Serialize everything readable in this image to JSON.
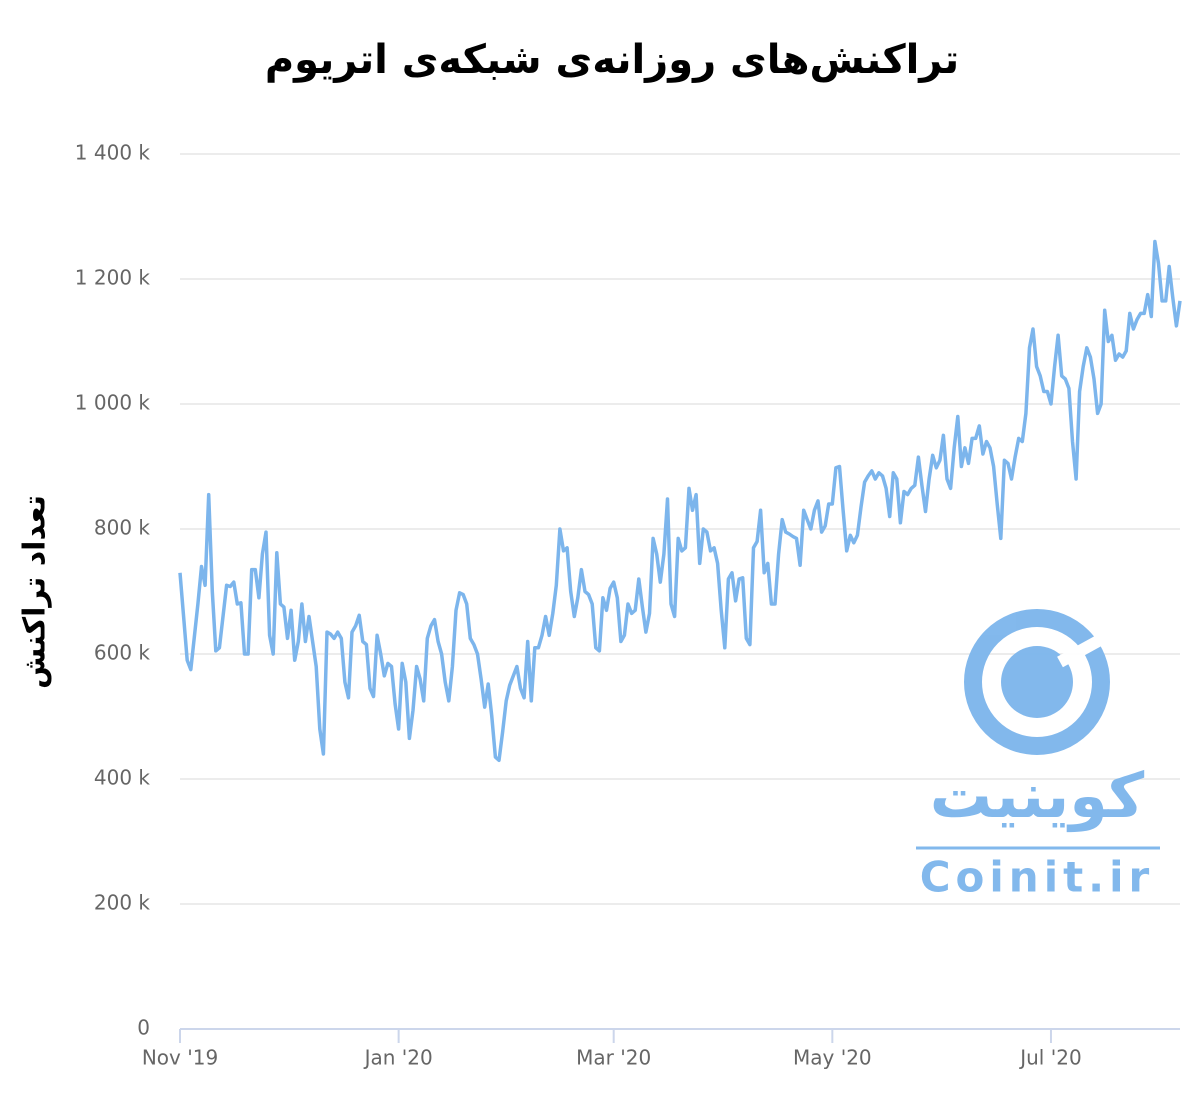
{
  "chart_data": {
    "type": "line",
    "title": "تراکنش‌های روزانه‌ی شبکه‌ی اتریوم",
    "y_label": "تعداد تراکنش",
    "watermark": {
      "brand": "کوینیت",
      "site": "Coinit.ir"
    },
    "series": [
      {
        "name": null,
        "color": "#7cb5ec",
        "x": [
          0,
          2,
          3,
          5,
          6,
          7,
          8,
          9,
          10,
          11,
          13,
          14,
          15,
          16,
          17,
          18,
          19,
          20,
          21,
          22,
          23,
          24,
          25,
          26,
          27,
          28,
          29,
          30,
          31,
          32,
          33,
          34,
          35,
          36,
          37,
          38,
          39,
          40,
          41,
          42,
          43,
          44,
          45,
          46,
          47,
          48,
          49,
          50,
          51,
          52,
          53,
          54,
          55,
          56,
          57,
          58,
          59,
          60,
          61,
          62,
          63,
          64,
          65,
          66,
          67,
          68,
          69,
          70,
          71,
          72,
          73,
          74,
          75,
          76,
          77,
          78,
          79,
          80,
          81,
          82,
          83,
          84,
          85,
          86,
          87,
          88,
          89,
          90,
          91,
          92,
          93,
          94,
          95,
          96,
          97,
          98,
          99,
          100,
          101,
          102,
          103,
          104,
          105,
          106,
          107,
          108,
          109,
          110,
          111,
          112,
          113,
          114,
          115,
          116,
          117,
          118,
          119,
          120,
          121,
          122,
          123,
          124,
          125,
          126,
          127,
          128,
          129,
          130,
          131,
          132,
          133,
          134,
          135,
          136,
          137,
          138,
          139,
          140,
          141,
          142,
          143,
          144,
          145,
          146,
          147,
          148,
          149,
          150,
          151,
          152,
          153,
          154,
          155,
          156,
          157,
          158,
          159,
          160,
          161,
          162,
          163,
          164,
          165,
          166,
          167,
          168,
          169,
          170,
          171,
          172,
          173,
          174,
          175,
          176,
          177,
          178,
          179,
          180,
          181,
          182,
          183,
          184,
          185,
          186,
          187,
          188,
          189,
          190,
          191,
          192,
          193,
          194,
          195,
          196,
          197,
          198,
          199,
          200,
          201,
          202,
          203,
          204,
          205,
          206,
          207,
          208,
          209,
          210,
          211,
          212,
          213,
          214,
          215,
          216,
          217,
          218,
          219,
          220,
          221,
          222,
          223,
          224,
          225,
          226,
          227,
          228,
          229,
          230,
          231,
          232,
          233,
          234,
          235,
          236,
          237,
          238,
          239,
          240,
          241,
          242,
          243,
          244,
          245,
          246,
          247,
          248,
          249,
          250,
          251,
          252,
          253,
          254,
          255,
          256,
          257,
          258,
          259,
          260,
          261,
          262,
          263,
          264,
          265,
          266,
          267,
          268,
          269,
          270,
          271,
          272,
          273,
          274,
          275,
          276,
          277,
          278,
          279
        ],
        "values": [
          730,
          590,
          575,
          680,
          740,
          710,
          855,
          700,
          605,
          610,
          710,
          708,
          715,
          680,
          682,
          600,
          600,
          735,
          735,
          690,
          760,
          795,
          630,
          600,
          762,
          680,
          675,
          625,
          670,
          590,
          620,
          680,
          620,
          660,
          620,
          580,
          480,
          440,
          635,
          632,
          625,
          635,
          625,
          555,
          530,
          635,
          645,
          662,
          620,
          615,
          545,
          532,
          630,
          600,
          565,
          585,
          580,
          520,
          480,
          585,
          555,
          465,
          510,
          580,
          560,
          525,
          625,
          645,
          655,
          620,
          600,
          555,
          525,
          580,
          670,
          698,
          695,
          680,
          625,
          615,
          600,
          560,
          515,
          552,
          500,
          435,
          430,
          475,
          525,
          550,
          565,
          580,
          545,
          530,
          620,
          525,
          610,
          610,
          630,
          660,
          630,
          665,
          710,
          800,
          765,
          770,
          700,
          660,
          690,
          735,
          700,
          695,
          680,
          610,
          605,
          690,
          670,
          705,
          715,
          690,
          620,
          630,
          680,
          665,
          670,
          720,
          675,
          635,
          665,
          785,
          760,
          715,
          760,
          848,
          680,
          660,
          785,
          765,
          770,
          865,
          830,
          855,
          745,
          800,
          795,
          765,
          770,
          745,
          670,
          610,
          720,
          730,
          685,
          720,
          722,
          625,
          615,
          770,
          780,
          830,
          730,
          745,
          680,
          680,
          760,
          815,
          795,
          792,
          788,
          785,
          742,
          830,
          815,
          800,
          830,
          845,
          795,
          805,
          840,
          840,
          898,
          900,
          830,
          765,
          790,
          778,
          790,
          835,
          875,
          885,
          893,
          880,
          890,
          885,
          865,
          820,
          890,
          880,
          810,
          860,
          855,
          865,
          870,
          915,
          870,
          828,
          880,
          918,
          898,
          910,
          950,
          880,
          865,
          930,
          980,
          900,
          930,
          905,
          945,
          945,
          965,
          920,
          940,
          930,
          900,
          840,
          785,
          910,
          905,
          880,
          915,
          945,
          940,
          985,
          1090,
          1120,
          1060,
          1045,
          1020,
          1020,
          1000,
          1060,
          1110,
          1045,
          1040,
          1025,
          940,
          880,
          1020,
          1060,
          1090,
          1075,
          1040,
          985,
          1000,
          1150,
          1100,
          1110,
          1070,
          1080,
          1075,
          1085,
          1145,
          1120,
          1135,
          1145,
          1145,
          1175,
          1140,
          1260,
          1225,
          1165,
          1165,
          1220,
          1170,
          1125,
          1165
        ]
      }
    ],
    "xlim": [
      0,
      279
    ],
    "xticks": [
      {
        "value": 0,
        "label": "Nov '19"
      },
      {
        "value": 61,
        "label": "Jan '20"
      },
      {
        "value": 121,
        "label": "Mar '20"
      },
      {
        "value": 182,
        "label": "May '20"
      },
      {
        "value": 243,
        "label": "Jul '20"
      }
    ],
    "ylim": [
      0,
      1400
    ],
    "yticks": [
      0,
      {
        "value": 200,
        "label": "200 k"
      },
      {
        "value": 400,
        "label": "400 k"
      },
      {
        "value": 600,
        "label": "600 k"
      },
      {
        "value": 800,
        "label": "800 k"
      },
      {
        "value": 1000,
        "label": "1 000 k"
      },
      {
        "value": 1200,
        "label": "1 200 k"
      },
      {
        "value": 1400,
        "label": "1 400 k"
      }
    ],
    "grid": true
  }
}
